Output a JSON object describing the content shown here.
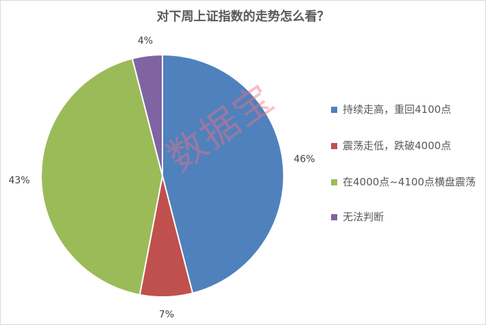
{
  "chart_data": {
    "type": "pie",
    "title": "对下周上证指数的走势怎么看？",
    "categories": [
      "持续走高，重回4100点",
      "震荡走低，跌破4000点",
      "在4000点~4100点横盘震荡",
      "无法判断"
    ],
    "values": [
      46,
      7,
      43,
      4
    ],
    "data_labels": [
      "46%",
      "7%",
      "43%",
      "4%"
    ],
    "colors": [
      "#4f81bd",
      "#c0504d",
      "#9bbb59",
      "#8064a2"
    ],
    "start_angle": "top, clockwise",
    "legend_position": "right"
  },
  "watermark": "数据宝"
}
